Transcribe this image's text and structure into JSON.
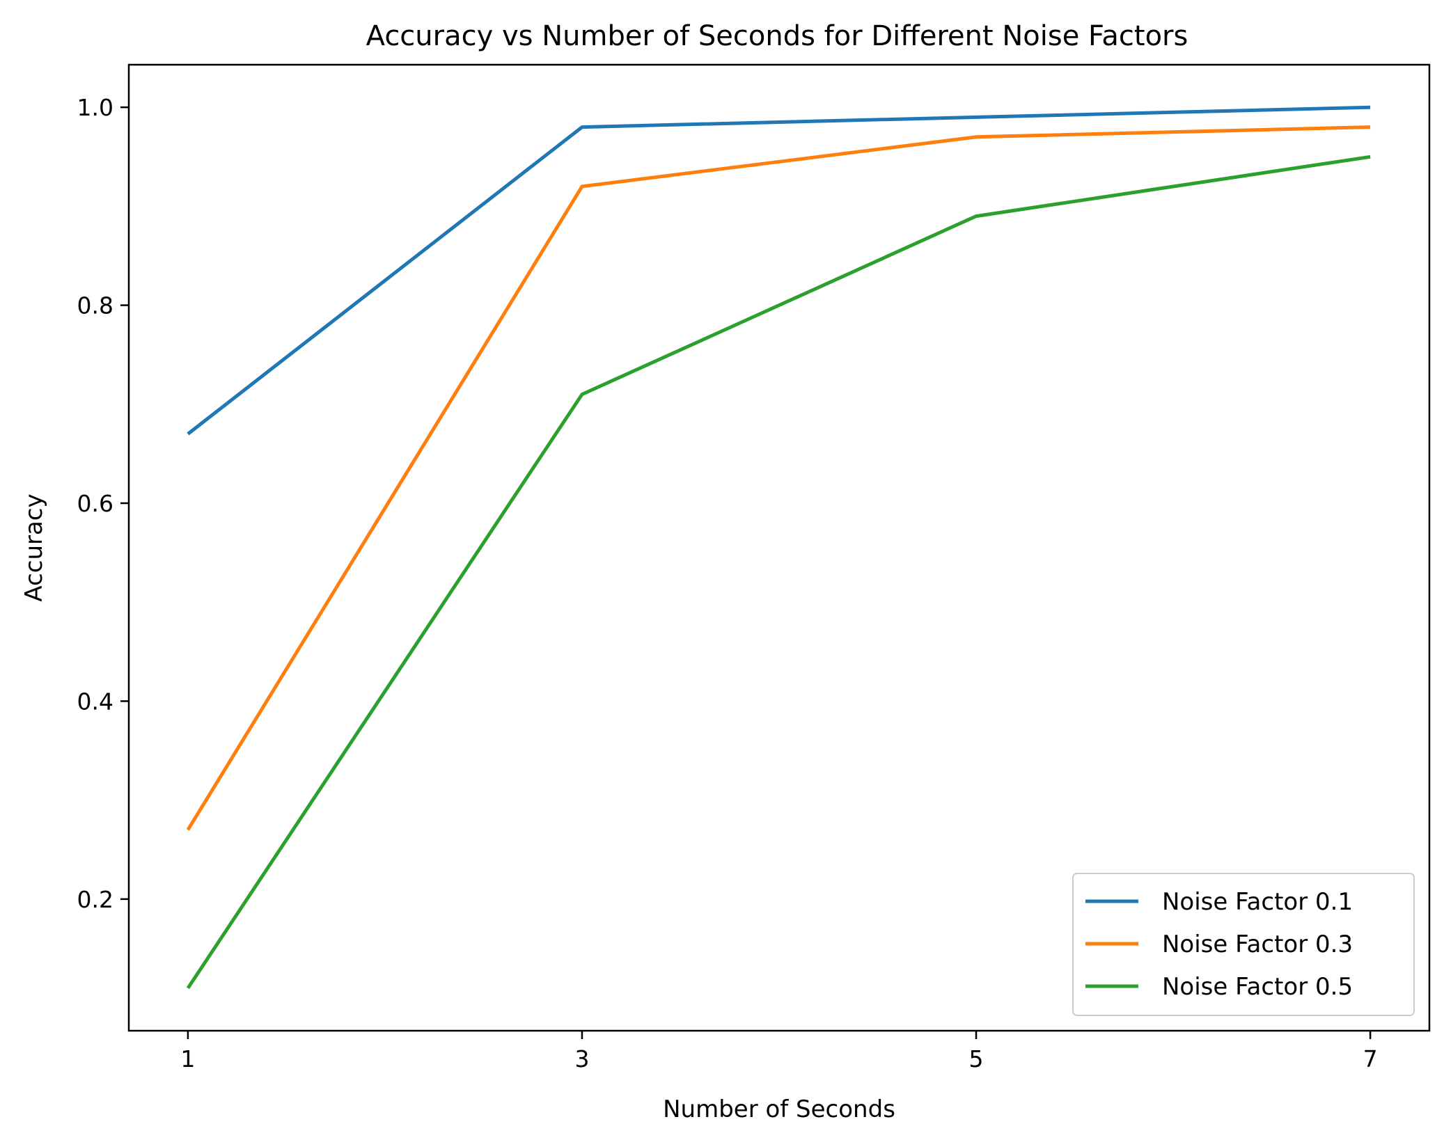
{
  "chart_data": {
    "type": "line",
    "title": "Accuracy vs Number of Seconds for Different Noise Factors",
    "xlabel": "Number of Seconds",
    "ylabel": "Accuracy",
    "x": [
      1,
      3,
      5,
      7
    ],
    "xticks": [
      1,
      3,
      5,
      7
    ],
    "yticks": [
      0.2,
      0.4,
      0.6,
      0.8,
      1.0
    ],
    "ytick_labels": [
      "0.2",
      "0.4",
      "0.6",
      "0.8",
      "1.0"
    ],
    "xlim": [
      0.7,
      7.3
    ],
    "ylim": [
      0.067,
      1.043
    ],
    "grid": false,
    "legend_position": "bottom-right",
    "series": [
      {
        "name": "Noise Factor 0.1",
        "color": "#1f77b4",
        "values": [
          0.67,
          0.98,
          0.99,
          1.0
        ]
      },
      {
        "name": "Noise Factor 0.3",
        "color": "#ff7f0e",
        "values": [
          0.27,
          0.92,
          0.97,
          0.98
        ]
      },
      {
        "name": "Noise Factor 0.5",
        "color": "#2ca02c",
        "values": [
          0.11,
          0.71,
          0.89,
          0.95
        ]
      }
    ]
  }
}
